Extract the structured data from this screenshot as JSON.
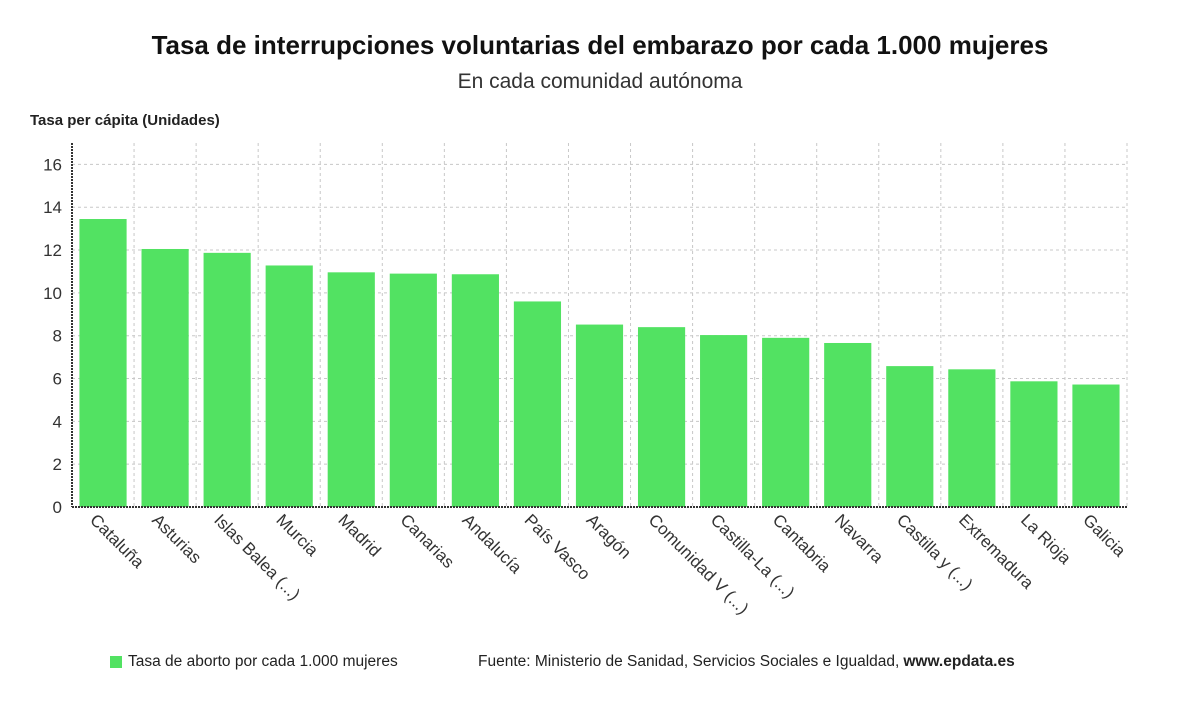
{
  "chart_data": {
    "type": "bar",
    "title": "Tasa de interrupciones voluntarias del embarazo por cada 1.000 mujeres",
    "subtitle": "En cada comunidad autónoma",
    "ylabel": "Tasa per cápita (Unidades)",
    "xlabel": "",
    "ylim": [
      0,
      17
    ],
    "yticks": [
      0,
      2,
      4,
      6,
      8,
      10,
      12,
      14,
      16
    ],
    "grid": true,
    "categories": [
      "Cataluña",
      "Asturias",
      "Islas Balea (...)",
      "Murcia",
      "Madrid",
      "Canarias",
      "Andalucía",
      "País Vasco",
      "Aragón",
      "Comunidad V (...)",
      "Castilla-La (...)",
      "Cantabria",
      "Navarra",
      "Castilla y (...)",
      "Extremadura",
      "La Rioja",
      "Galicia"
    ],
    "series": [
      {
        "name": "Tasa de aborto por cada 1.000 mujeres",
        "color": "#52e262",
        "values": [
          13.45,
          12.05,
          11.87,
          11.28,
          10.96,
          10.9,
          10.87,
          9.6,
          8.52,
          8.4,
          8.03,
          7.9,
          7.66,
          6.58,
          6.43,
          5.87,
          5.72
        ]
      }
    ],
    "legend_position": "bottom-left"
  },
  "source": {
    "text": "Fuente: Ministerio de Sanidad, Servicios Sociales e Igualdad,",
    "site": "www.epdata.es"
  }
}
